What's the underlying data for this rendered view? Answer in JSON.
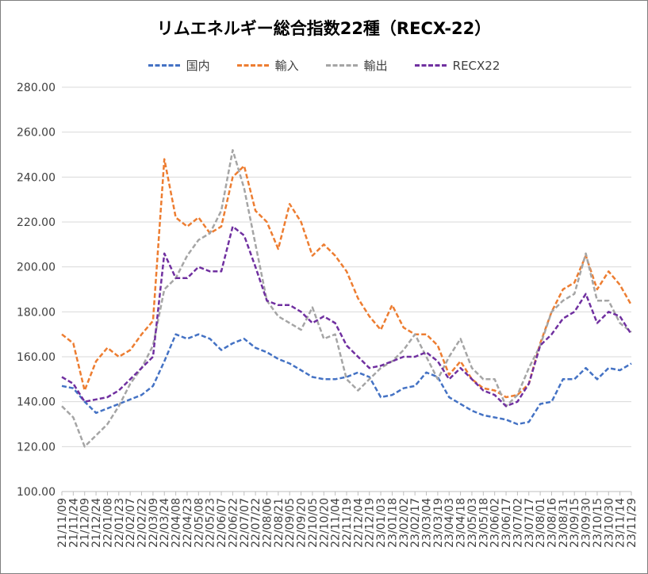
{
  "chart_data": {
    "type": "line",
    "title": "リムエネルギー総合指数22種（RECX-22）",
    "ylim": [
      100,
      280
    ],
    "y_ticks": [
      "100.00",
      "120.00",
      "140.00",
      "160.00",
      "180.00",
      "200.00",
      "220.00",
      "240.00",
      "260.00",
      "280.00"
    ],
    "grid": "horizontal",
    "legend_position": "top",
    "categories": [
      "21/11/09",
      "21/11/24",
      "21/12/09",
      "21/12/24",
      "22/01/08",
      "22/01/23",
      "22/02/07",
      "22/02/22",
      "22/03/09",
      "22/03/24",
      "22/04/08",
      "22/04/23",
      "22/05/08",
      "22/05/23",
      "22/06/07",
      "22/06/22",
      "22/07/07",
      "22/07/22",
      "22/08/06",
      "22/08/21",
      "22/09/05",
      "22/09/20",
      "22/10/05",
      "22/10/20",
      "22/11/04",
      "22/11/19",
      "22/12/04",
      "22/12/19",
      "23/01/03",
      "23/01/18",
      "23/02/02",
      "23/02/17",
      "23/03/04",
      "23/03/19",
      "23/04/03",
      "23/04/18",
      "23/05/03",
      "23/05/18",
      "23/06/02",
      "23/06/17",
      "23/07/02",
      "23/07/17",
      "23/08/01",
      "23/08/16",
      "23/08/31",
      "23/09/15",
      "23/09/30",
      "23/10/15",
      "23/10/30",
      "23/11/14",
      "23/11/29"
    ],
    "series": [
      {
        "name": "国内",
        "color": "#4472c4",
        "values": [
          147,
          146,
          140,
          135,
          137,
          139,
          141,
          143,
          147,
          158,
          170,
          168,
          170,
          168,
          163,
          166,
          168,
          164,
          162,
          159,
          157,
          154,
          151,
          150,
          150,
          151,
          153,
          151,
          142,
          143,
          146,
          147,
          153,
          151,
          142,
          139,
          136,
          134,
          133,
          132,
          130,
          131,
          139,
          140,
          150,
          150,
          155,
          150,
          155,
          154,
          157
        ]
      },
      {
        "name": "輸入",
        "color": "#ed7d31",
        "values": [
          170,
          166,
          145,
          158,
          164,
          160,
          163,
          170,
          176,
          248,
          222,
          218,
          222,
          215,
          218,
          240,
          245,
          225,
          220,
          208,
          228,
          220,
          205,
          210,
          205,
          198,
          186,
          178,
          172,
          183,
          173,
          170,
          170,
          165,
          152,
          158,
          150,
          146,
          145,
          142,
          143,
          148,
          166,
          180,
          190,
          193,
          205,
          190,
          198,
          192,
          183
        ]
      },
      {
        "name": "輸出",
        "color": "#a5a5a5",
        "values": [
          138,
          133,
          120,
          125,
          130,
          138,
          148,
          155,
          165,
          190,
          195,
          205,
          212,
          215,
          225,
          252,
          235,
          210,
          185,
          178,
          175,
          172,
          182,
          168,
          170,
          150,
          145,
          150,
          155,
          158,
          163,
          170,
          160,
          150,
          160,
          168,
          155,
          150,
          150,
          138,
          143,
          155,
          165,
          180,
          185,
          188,
          206,
          185,
          185,
          175,
          171
        ]
      },
      {
        "name": "RECX22",
        "color": "#7030a0",
        "values": [
          151,
          148,
          140,
          141,
          142,
          145,
          150,
          155,
          160,
          206,
          195,
          195,
          200,
          198,
          198,
          218,
          214,
          200,
          185,
          183,
          183,
          180,
          175,
          178,
          175,
          165,
          160,
          155,
          156,
          158,
          160,
          160,
          162,
          158,
          150,
          155,
          150,
          145,
          143,
          138,
          140,
          148,
          165,
          170,
          177,
          180,
          188,
          175,
          180,
          178,
          170
        ]
      }
    ]
  }
}
